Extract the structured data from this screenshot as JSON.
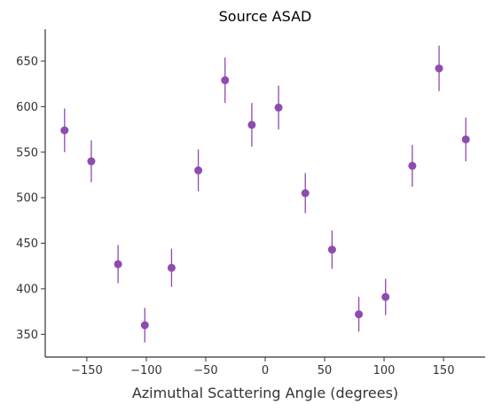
{
  "chart_data": {
    "type": "scatter",
    "title": "Source ASAD",
    "xlabel": "Azimuthal Scattering Angle (degrees)",
    "ylabel": "",
    "xlim": [
      -185,
      185
    ],
    "ylim": [
      325,
      685
    ],
    "xticks": [
      -150,
      -100,
      -50,
      0,
      50,
      100,
      150
    ],
    "xtick_labels": [
      "−150",
      "−100",
      "−50",
      "0",
      "50",
      "100",
      "150"
    ],
    "yticks": [
      350,
      400,
      450,
      500,
      550,
      600,
      650
    ],
    "ytick_labels": [
      "350",
      "400",
      "450",
      "500",
      "550",
      "600",
      "650"
    ],
    "grid": false,
    "color": "#8e4bb0",
    "series": [
      {
        "x": [
          -168.75,
          -146.25,
          -123.75,
          -101.25,
          -78.75,
          -56.25,
          -33.75,
          -11.25,
          11.25,
          33.75,
          56.25,
          78.75,
          101.25,
          123.75,
          146.25,
          168.75
        ],
        "values": [
          574,
          540,
          427,
          360,
          423,
          530,
          629,
          580,
          599,
          505,
          443,
          372,
          391,
          535,
          642,
          564
        ],
        "errors": [
          24,
          23,
          21,
          19,
          21,
          23,
          25,
          24,
          24,
          22,
          21,
          19,
          20,
          23,
          25,
          24
        ]
      }
    ]
  }
}
